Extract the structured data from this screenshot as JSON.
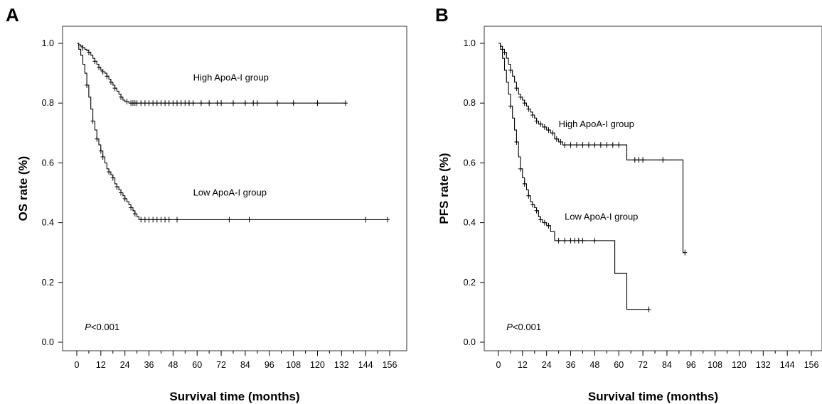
{
  "chart_data": [
    {
      "type": "line",
      "panel_label": "A",
      "xlabel": "Survival time (months)",
      "ylabel": "OS rate (%)",
      "xlim": [
        0,
        156
      ],
      "ylim": [
        0,
        1
      ],
      "xticks": [
        0,
        6,
        12,
        18,
        24,
        30,
        36,
        42,
        48,
        54,
        60,
        66,
        72,
        78,
        84,
        90,
        96,
        102,
        108,
        114,
        120,
        126,
        132,
        138,
        144,
        150,
        156
      ],
      "xtick_labels": [
        "0",
        "12",
        "24",
        "36",
        "48",
        "60",
        "72",
        "84",
        "96",
        "108",
        "120",
        "132",
        "144",
        "156"
      ],
      "yticks": [
        0.0,
        0.2,
        0.4,
        0.6,
        0.8,
        1.0
      ],
      "ytick_labels": [
        "0.0",
        "0.2",
        "0.4",
        "0.6",
        "0.8",
        "1.0"
      ],
      "p_value_prefix": "P",
      "p_value_rest": "<0.001",
      "series": [
        {
          "name": "High ApoA-I group",
          "label_at": [
            58,
            0.875
          ],
          "steps": [
            [
              0,
              1.0
            ],
            [
              1,
              0.995
            ],
            [
              2,
              0.99
            ],
            [
              3,
              0.985
            ],
            [
              4,
              0.98
            ],
            [
              5,
              0.975
            ],
            [
              6,
              0.97
            ],
            [
              7,
              0.96
            ],
            [
              8,
              0.95
            ],
            [
              9,
              0.94
            ],
            [
              10,
              0.93
            ],
            [
              11,
              0.92
            ],
            [
              12,
              0.91
            ],
            [
              13,
              0.905
            ],
            [
              14,
              0.9
            ],
            [
              15,
              0.89
            ],
            [
              16,
              0.88
            ],
            [
              17,
              0.87
            ],
            [
              18,
              0.86
            ],
            [
              19,
              0.85
            ],
            [
              20,
              0.84
            ],
            [
              21,
              0.83
            ],
            [
              22,
              0.82
            ],
            [
              23,
              0.81
            ],
            [
              24,
              0.805
            ],
            [
              26,
              0.8
            ],
            [
              134,
              0.8
            ]
          ],
          "censored": [
            [
              3,
              0.985
            ],
            [
              6,
              0.97
            ],
            [
              9,
              0.94
            ],
            [
              11,
              0.92
            ],
            [
              13,
              0.905
            ],
            [
              15,
              0.89
            ],
            [
              17,
              0.87
            ],
            [
              19,
              0.85
            ],
            [
              22,
              0.82
            ],
            [
              25,
              0.805
            ],
            [
              27,
              0.8
            ],
            [
              28,
              0.8
            ],
            [
              29,
              0.8
            ],
            [
              30,
              0.8
            ],
            [
              32,
              0.8
            ],
            [
              34,
              0.8
            ],
            [
              36,
              0.8
            ],
            [
              38,
              0.8
            ],
            [
              40,
              0.8
            ],
            [
              42,
              0.8
            ],
            [
              44,
              0.8
            ],
            [
              46,
              0.8
            ],
            [
              48,
              0.8
            ],
            [
              50,
              0.8
            ],
            [
              52,
              0.8
            ],
            [
              54,
              0.8
            ],
            [
              56,
              0.8
            ],
            [
              58,
              0.8
            ],
            [
              62,
              0.8
            ],
            [
              66,
              0.8
            ],
            [
              70,
              0.8
            ],
            [
              72,
              0.8
            ],
            [
              78,
              0.8
            ],
            [
              84,
              0.8
            ],
            [
              88,
              0.8
            ],
            [
              90,
              0.8
            ],
            [
              100,
              0.8
            ],
            [
              108,
              0.8
            ],
            [
              120,
              0.8
            ],
            [
              134,
              0.8
            ]
          ]
        },
        {
          "name": "Low ApoA-I group",
          "label_at": [
            58,
            0.49
          ],
          "steps": [
            [
              0,
              1.0
            ],
            [
              1,
              0.98
            ],
            [
              2,
              0.96
            ],
            [
              3,
              0.93
            ],
            [
              4,
              0.9
            ],
            [
              5,
              0.86
            ],
            [
              6,
              0.82
            ],
            [
              7,
              0.78
            ],
            [
              8,
              0.74
            ],
            [
              9,
              0.71
            ],
            [
              10,
              0.68
            ],
            [
              11,
              0.66
            ],
            [
              12,
              0.64
            ],
            [
              13,
              0.62
            ],
            [
              14,
              0.6
            ],
            [
              15,
              0.58
            ],
            [
              16,
              0.57
            ],
            [
              17,
              0.56
            ],
            [
              18,
              0.55
            ],
            [
              19,
              0.53
            ],
            [
              20,
              0.52
            ],
            [
              21,
              0.51
            ],
            [
              22,
              0.5
            ],
            [
              23,
              0.49
            ],
            [
              24,
              0.48
            ],
            [
              25,
              0.47
            ],
            [
              26,
              0.46
            ],
            [
              27,
              0.45
            ],
            [
              28,
              0.44
            ],
            [
              29,
              0.43
            ],
            [
              30,
              0.42
            ],
            [
              31,
              0.41
            ],
            [
              155,
              0.41
            ]
          ],
          "censored": [
            [
              5,
              0.86
            ],
            [
              8,
              0.74
            ],
            [
              10,
              0.68
            ],
            [
              12,
              0.64
            ],
            [
              13,
              0.62
            ],
            [
              16,
              0.57
            ],
            [
              18,
              0.55
            ],
            [
              20,
              0.52
            ],
            [
              22,
              0.5
            ],
            [
              24,
              0.48
            ],
            [
              27,
              0.45
            ],
            [
              29,
              0.43
            ],
            [
              32,
              0.41
            ],
            [
              34,
              0.41
            ],
            [
              36,
              0.41
            ],
            [
              38,
              0.41
            ],
            [
              40,
              0.41
            ],
            [
              42,
              0.41
            ],
            [
              44,
              0.41
            ],
            [
              46,
              0.41
            ],
            [
              50,
              0.41
            ],
            [
              76,
              0.41
            ],
            [
              86,
              0.41
            ],
            [
              144,
              0.41
            ],
            [
              155,
              0.41
            ]
          ]
        }
      ]
    },
    {
      "type": "line",
      "panel_label": "B",
      "xlabel": "Survival time (months)",
      "ylabel": "PFS rate (%)",
      "xlim": [
        0,
        156
      ],
      "ylim": [
        0,
        1
      ],
      "xticks": [
        0,
        6,
        12,
        18,
        24,
        30,
        36,
        42,
        48,
        54,
        60,
        66,
        72,
        78,
        84,
        90,
        96,
        102,
        108,
        114,
        120,
        126,
        132,
        138,
        144,
        150,
        156
      ],
      "xtick_labels": [
        "0",
        "12",
        "24",
        "36",
        "48",
        "60",
        "72",
        "84",
        "96",
        "108",
        "120",
        "132",
        "144",
        "156"
      ],
      "yticks": [
        0.0,
        0.2,
        0.4,
        0.6,
        0.8,
        1.0
      ],
      "ytick_labels": [
        "0.0",
        "0.2",
        "0.4",
        "0.6",
        "0.8",
        "1.0"
      ],
      "p_value_prefix": "P",
      "p_value_rest": "<0.001",
      "series": [
        {
          "name": "High ApoA-I group",
          "label_at": [
            30,
            0.72
          ],
          "steps": [
            [
              0,
              1.0
            ],
            [
              1,
              0.99
            ],
            [
              2,
              0.98
            ],
            [
              3,
              0.97
            ],
            [
              4,
              0.95
            ],
            [
              5,
              0.93
            ],
            [
              6,
              0.91
            ],
            [
              7,
              0.89
            ],
            [
              8,
              0.87
            ],
            [
              9,
              0.85
            ],
            [
              10,
              0.83
            ],
            [
              11,
              0.82
            ],
            [
              12,
              0.81
            ],
            [
              13,
              0.8
            ],
            [
              14,
              0.79
            ],
            [
              15,
              0.78
            ],
            [
              16,
              0.77
            ],
            [
              17,
              0.76
            ],
            [
              18,
              0.75
            ],
            [
              19,
              0.74
            ],
            [
              20,
              0.73
            ],
            [
              22,
              0.72
            ],
            [
              24,
              0.71
            ],
            [
              26,
              0.7
            ],
            [
              28,
              0.68
            ],
            [
              30,
              0.67
            ],
            [
              32,
              0.66
            ],
            [
              64,
              0.61
            ],
            [
              90,
              0.61
            ],
            [
              92,
              0.3
            ],
            [
              93,
              0.3
            ]
          ],
          "censored": [
            [
              3,
              0.97
            ],
            [
              6,
              0.91
            ],
            [
              9,
              0.85
            ],
            [
              11,
              0.82
            ],
            [
              13,
              0.8
            ],
            [
              15,
              0.78
            ],
            [
              17,
              0.76
            ],
            [
              19,
              0.74
            ],
            [
              21,
              0.73
            ],
            [
              23,
              0.72
            ],
            [
              25,
              0.71
            ],
            [
              27,
              0.7
            ],
            [
              29,
              0.68
            ],
            [
              31,
              0.67
            ],
            [
              33,
              0.66
            ],
            [
              36,
              0.66
            ],
            [
              39,
              0.66
            ],
            [
              42,
              0.66
            ],
            [
              45,
              0.66
            ],
            [
              48,
              0.66
            ],
            [
              51,
              0.66
            ],
            [
              54,
              0.66
            ],
            [
              57,
              0.66
            ],
            [
              60,
              0.66
            ],
            [
              68,
              0.61
            ],
            [
              70,
              0.61
            ],
            [
              72,
              0.61
            ],
            [
              82,
              0.61
            ],
            [
              93,
              0.3
            ]
          ]
        },
        {
          "name": "Low ApoA-I group",
          "label_at": [
            33,
            0.41
          ],
          "steps": [
            [
              0,
              1.0
            ],
            [
              1,
              0.98
            ],
            [
              2,
              0.95
            ],
            [
              3,
              0.91
            ],
            [
              4,
              0.87
            ],
            [
              5,
              0.83
            ],
            [
              6,
              0.79
            ],
            [
              7,
              0.75
            ],
            [
              8,
              0.71
            ],
            [
              9,
              0.67
            ],
            [
              10,
              0.62
            ],
            [
              11,
              0.58
            ],
            [
              12,
              0.55
            ],
            [
              13,
              0.53
            ],
            [
              14,
              0.51
            ],
            [
              15,
              0.49
            ],
            [
              16,
              0.47
            ],
            [
              17,
              0.46
            ],
            [
              18,
              0.45
            ],
            [
              19,
              0.44
            ],
            [
              20,
              0.42
            ],
            [
              21,
              0.41
            ],
            [
              22,
              0.4
            ],
            [
              24,
              0.39
            ],
            [
              26,
              0.37
            ],
            [
              28,
              0.34
            ],
            [
              58,
              0.34
            ],
            [
              58,
              0.23
            ],
            [
              64,
              0.23
            ],
            [
              64,
              0.11
            ],
            [
              75,
              0.11
            ]
          ],
          "censored": [
            [
              6,
              0.79
            ],
            [
              9,
              0.67
            ],
            [
              11,
              0.58
            ],
            [
              13,
              0.53
            ],
            [
              15,
              0.49
            ],
            [
              17,
              0.46
            ],
            [
              19,
              0.44
            ],
            [
              21,
              0.41
            ],
            [
              23,
              0.4
            ],
            [
              25,
              0.39
            ],
            [
              30,
              0.34
            ],
            [
              33,
              0.34
            ],
            [
              36,
              0.34
            ],
            [
              38,
              0.34
            ],
            [
              40,
              0.34
            ],
            [
              42,
              0.34
            ],
            [
              48,
              0.34
            ],
            [
              75,
              0.11
            ]
          ]
        }
      ]
    }
  ]
}
